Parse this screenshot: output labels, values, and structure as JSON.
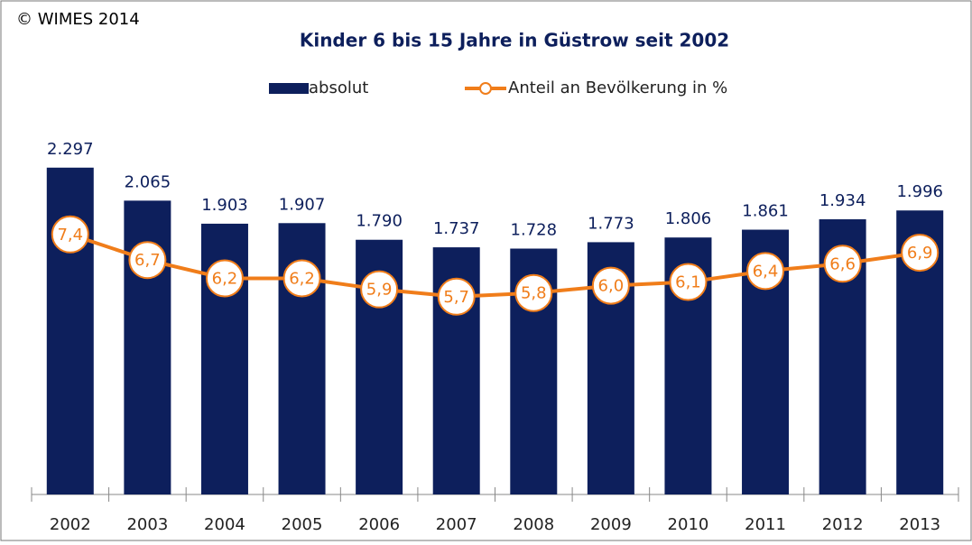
{
  "chart_data": {
    "type": "bar",
    "title": "Kinder 6 bis 15 Jahre in Güstrow seit 2002",
    "annotation": "© WIMES 2014",
    "categories": [
      "2002",
      "2003",
      "2004",
      "2005",
      "2006",
      "2007",
      "2008",
      "2009",
      "2010",
      "2011",
      "2012",
      "2013"
    ],
    "series": [
      {
        "name": "absolut",
        "type": "bar",
        "color": "#0d1f5c",
        "values": [
          2297,
          2065,
          1903,
          1907,
          1790,
          1737,
          1728,
          1773,
          1806,
          1861,
          1934,
          1996
        ],
        "value_labels": [
          "2.297",
          "2.065",
          "1.903",
          "1.907",
          "1.790",
          "1.737",
          "1.728",
          "1.773",
          "1.806",
          "1.861",
          "1.934",
          "1.996"
        ]
      },
      {
        "name": "Anteil an Bevölkerung in %",
        "type": "line",
        "axis": "y2",
        "color": "#f07d1a",
        "values": [
          7.4,
          6.7,
          6.2,
          6.2,
          5.9,
          5.7,
          5.8,
          6.0,
          6.1,
          6.4,
          6.6,
          6.9
        ],
        "value_labels": [
          "7,4",
          "6,7",
          "6,2",
          "6,2",
          "5,9",
          "5,7",
          "5,8",
          "6,0",
          "6,1",
          "6,4",
          "6,6",
          "6,9"
        ]
      }
    ],
    "ylim": [
      0,
      2600
    ],
    "y2lim": [
      0.3,
      10.4
    ],
    "legend": "top"
  }
}
